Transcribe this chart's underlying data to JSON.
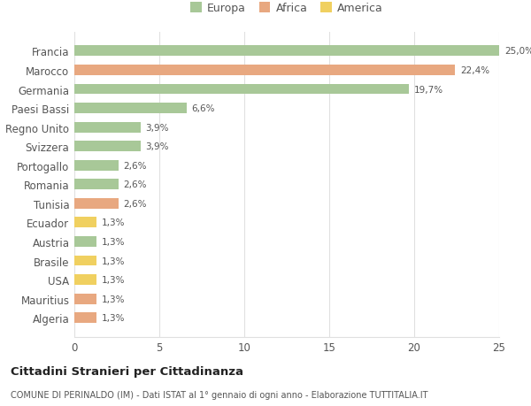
{
  "countries": [
    "Francia",
    "Marocco",
    "Germania",
    "Paesi Bassi",
    "Regno Unito",
    "Svizzera",
    "Portogallo",
    "Romania",
    "Tunisia",
    "Ecuador",
    "Austria",
    "Brasile",
    "USA",
    "Mauritius",
    "Algeria"
  ],
  "values": [
    25.0,
    22.4,
    19.7,
    6.6,
    3.9,
    3.9,
    2.6,
    2.6,
    2.6,
    1.3,
    1.3,
    1.3,
    1.3,
    1.3,
    1.3
  ],
  "labels": [
    "25,0%",
    "22,4%",
    "19,7%",
    "6,6%",
    "3,9%",
    "3,9%",
    "2,6%",
    "2,6%",
    "2,6%",
    "1,3%",
    "1,3%",
    "1,3%",
    "1,3%",
    "1,3%",
    "1,3%"
  ],
  "categories": [
    "Europa",
    "Africa",
    "Europa",
    "Europa",
    "Europa",
    "Europa",
    "Europa",
    "Europa",
    "Africa",
    "America",
    "Europa",
    "America",
    "America",
    "Africa",
    "Africa"
  ],
  "colors": {
    "Europa": "#a8c898",
    "Africa": "#e8a880",
    "America": "#f0d060"
  },
  "legend_order": [
    "Europa",
    "Africa",
    "America"
  ],
  "title": "Cittadini Stranieri per Cittadinanza",
  "subtitle": "COMUNE DI PERINALDO (IM) - Dati ISTAT al 1° gennaio di ogni anno - Elaborazione TUTTITALIA.IT",
  "xlim": [
    0,
    25
  ],
  "xticks": [
    0,
    5,
    10,
    15,
    20,
    25
  ],
  "bg_color": "#ffffff",
  "grid_color": "#e0e0e0",
  "bar_height": 0.55
}
